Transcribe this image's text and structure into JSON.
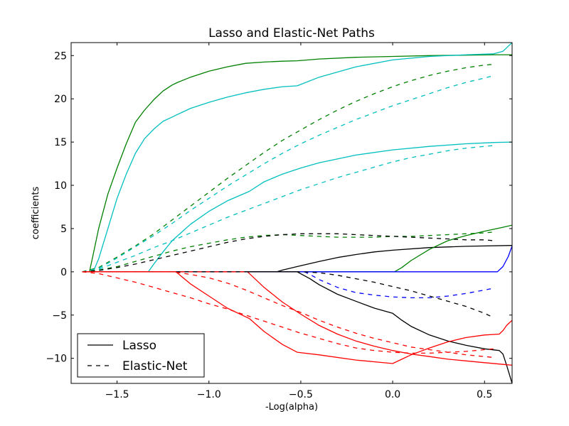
{
  "chart_data": {
    "type": "line",
    "title": "Lasso and Elastic-Net Paths",
    "xlabel": "-Log(alpha)",
    "ylabel": "coefficients",
    "xlim": [
      -1.75,
      0.65
    ],
    "ylim": [
      -12.9,
      26.5
    ],
    "xticks": [
      -1.5,
      -1.0,
      -0.5,
      0.0,
      0.5
    ],
    "xtick_labels": [
      "−1.5",
      "−1.0",
      "−0.5",
      "0.0",
      "0.5"
    ],
    "yticks": [
      -10,
      -5,
      0,
      5,
      10,
      15,
      20,
      25
    ],
    "ytick_labels": [
      "−10",
      "−5",
      "0",
      "5",
      "10",
      "15",
      "20",
      "25"
    ],
    "grid": false,
    "legend": {
      "position": "lower-left",
      "entries": [
        {
          "label": "Lasso",
          "style": "solid"
        },
        {
          "label": "Elastic-Net",
          "style": "dashed"
        }
      ]
    },
    "series": [
      {
        "group": "Lasso",
        "color": "#008000",
        "style": "solid",
        "x": [
          -1.69,
          -1.65,
          -1.63,
          -1.6,
          -1.55,
          -1.5,
          -1.45,
          -1.4,
          -1.35,
          -1.3,
          -1.25,
          -1.2,
          -1.17,
          -1.1,
          -1.0,
          -0.9,
          -0.8,
          -0.7,
          -0.6,
          -0.52,
          -0.4,
          -0.2,
          0.0,
          0.2,
          0.4,
          0.55,
          0.65
        ],
        "y": [
          0,
          0,
          2,
          5,
          9,
          12,
          14.8,
          17.3,
          18.7,
          19.9,
          20.9,
          21.6,
          21.9,
          22.5,
          23.2,
          23.7,
          24.1,
          24.25,
          24.35,
          24.4,
          24.6,
          24.8,
          24.9,
          25.0,
          25.05,
          25.1,
          25.1
        ]
      },
      {
        "group": "Lasso",
        "color": "#00BFBF",
        "style": "solid",
        "x": [
          -1.69,
          -1.63,
          -1.6,
          -1.55,
          -1.5,
          -1.45,
          -1.4,
          -1.35,
          -1.3,
          -1.25,
          -1.2,
          -1.17,
          -1.1,
          -1.0,
          -0.9,
          -0.8,
          -0.7,
          -0.6,
          -0.52,
          -0.4,
          -0.2,
          0.0,
          0.2,
          0.4,
          0.55,
          0.6,
          0.65
        ],
        "y": [
          0,
          0,
          1.5,
          5,
          8.5,
          11.3,
          13.7,
          15.4,
          16.5,
          17.4,
          17.9,
          18.2,
          18.9,
          19.6,
          20.2,
          20.7,
          21.1,
          21.4,
          21.5,
          22.5,
          23.7,
          24.5,
          24.9,
          25.1,
          25.2,
          25.5,
          26.5
        ]
      },
      {
        "group": "Lasso",
        "color": "#00BFBF",
        "style": "solid",
        "x": [
          -1.69,
          -1.33,
          -1.3,
          -1.25,
          -1.2,
          -1.1,
          -1.0,
          -0.9,
          -0.78,
          -0.7,
          -0.6,
          -0.5,
          -0.4,
          -0.2,
          0.0,
          0.2,
          0.4,
          0.55,
          0.65
        ],
        "y": [
          0,
          0,
          0.9,
          2.3,
          3.6,
          5.5,
          7.0,
          8.2,
          9.3,
          10.4,
          11.3,
          12.0,
          12.6,
          13.5,
          14.1,
          14.5,
          14.8,
          14.95,
          15.0
        ]
      },
      {
        "group": "Lasso",
        "color": "#000000",
        "style": "solid",
        "x": [
          -1.69,
          -0.63,
          -0.6,
          -0.5,
          -0.4,
          -0.3,
          -0.2,
          -0.1,
          0.0,
          0.2,
          0.4,
          0.65
        ],
        "y": [
          0,
          0,
          0.2,
          0.7,
          1.2,
          1.65,
          2.0,
          2.3,
          2.5,
          2.8,
          2.95,
          3.05
        ]
      },
      {
        "group": "Lasso",
        "color": "#008000",
        "style": "solid",
        "x": [
          -1.69,
          0.01,
          0.05,
          0.1,
          0.2,
          0.3,
          0.4,
          0.5,
          0.6,
          0.65
        ],
        "y": [
          0,
          0,
          0.5,
          1.3,
          2.6,
          3.6,
          4.2,
          4.7,
          5.15,
          5.4
        ]
      },
      {
        "group": "Lasso",
        "color": "#0000FF",
        "style": "solid",
        "x": [
          -1.69,
          0.57,
          0.6,
          0.63,
          0.65
        ],
        "y": [
          0,
          0,
          0.6,
          1.8,
          3.0
        ]
      },
      {
        "group": "Lasso",
        "color": "#000000",
        "style": "solid",
        "x": [
          -1.69,
          -0.52,
          -0.45,
          -0.4,
          -0.3,
          -0.2,
          -0.1,
          0.0,
          0.05,
          0.1,
          0.2,
          0.3,
          0.4,
          0.5,
          0.58,
          0.6,
          0.62,
          0.65
        ],
        "y": [
          0,
          0,
          -0.8,
          -1.5,
          -2.6,
          -3.4,
          -4.2,
          -4.8,
          -5.6,
          -6.3,
          -7.3,
          -8.0,
          -8.5,
          -8.9,
          -9.1,
          -9.5,
          -10.8,
          -12.9
        ]
      },
      {
        "group": "Lasso",
        "color": "#FF0000",
        "style": "solid",
        "x": [
          -1.69,
          -1.18,
          -1.1,
          -1.0,
          -0.9,
          -0.8,
          -0.78,
          -0.7,
          -0.6,
          -0.52,
          -0.4,
          -0.2,
          0.0,
          0.05,
          0.1,
          0.2,
          0.3,
          0.4,
          0.5,
          0.58,
          0.6,
          0.62,
          0.65
        ],
        "y": [
          0,
          0,
          -1.4,
          -2.8,
          -4.2,
          -5.2,
          -5.4,
          -6.9,
          -8.4,
          -9.3,
          -9.6,
          -10.2,
          -10.6,
          -10.1,
          -9.6,
          -8.8,
          -8.1,
          -7.6,
          -7.3,
          -7.2,
          -6.8,
          -6.2,
          -5.6
        ]
      },
      {
        "group": "Lasso",
        "color": "#FF0000",
        "style": "solid",
        "x": [
          -1.69,
          -0.79,
          -0.7,
          -0.6,
          -0.5,
          -0.4,
          -0.3,
          -0.2,
          -0.1,
          0.0,
          0.1,
          0.2,
          0.3,
          0.4,
          0.5,
          0.6,
          0.65
        ],
        "y": [
          0,
          0,
          -1.8,
          -3.5,
          -4.9,
          -6.2,
          -7.2,
          -8.0,
          -8.6,
          -9.1,
          -9.5,
          -9.8,
          -10.1,
          -10.3,
          -10.5,
          -10.7,
          -10.8
        ]
      },
      {
        "group": "Elastic-Net",
        "color": "#008000",
        "style": "dashed",
        "x": [
          -1.69,
          -1.6,
          -1.5,
          -1.4,
          -1.3,
          -1.2,
          -1.1,
          -1.0,
          -0.9,
          -0.8,
          -0.7,
          -0.6,
          -0.5,
          -0.4,
          -0.3,
          -0.2,
          -0.1,
          0.0,
          0.1,
          0.2,
          0.3,
          0.4,
          0.5,
          0.55
        ],
        "y": [
          0,
          0.5,
          1.7,
          3.0,
          4.4,
          6.0,
          7.6,
          9.2,
          10.8,
          12.3,
          13.8,
          15.2,
          16.4,
          17.6,
          18.7,
          19.7,
          20.6,
          21.4,
          22.1,
          22.7,
          23.2,
          23.6,
          23.9,
          24.0
        ]
      },
      {
        "group": "Elastic-Net",
        "color": "#00BFBF",
        "style": "dashed",
        "x": [
          -1.69,
          -1.6,
          -1.5,
          -1.4,
          -1.3,
          -1.2,
          -1.1,
          -1.0,
          -0.9,
          -0.8,
          -0.7,
          -0.6,
          -0.5,
          -0.4,
          -0.3,
          -0.2,
          -0.1,
          0.0,
          0.1,
          0.2,
          0.3,
          0.4,
          0.5,
          0.55
        ],
        "y": [
          0,
          0.4,
          1.6,
          2.9,
          4.2,
          5.6,
          7.1,
          8.5,
          9.9,
          11.2,
          12.5,
          13.7,
          14.8,
          15.8,
          16.7,
          17.6,
          18.4,
          19.2,
          19.9,
          20.6,
          21.3,
          21.9,
          22.4,
          22.7
        ]
      },
      {
        "group": "Elastic-Net",
        "color": "#00BFBF",
        "style": "dashed",
        "x": [
          -1.69,
          -1.6,
          -1.5,
          -1.4,
          -1.3,
          -1.2,
          -1.1,
          -1.0,
          -0.9,
          -0.8,
          -0.7,
          -0.6,
          -0.5,
          -0.4,
          -0.3,
          -0.2,
          -0.1,
          0.0,
          0.1,
          0.2,
          0.3,
          0.4,
          0.5,
          0.55
        ],
        "y": [
          0,
          0.3,
          1.1,
          1.9,
          2.8,
          3.6,
          4.5,
          5.4,
          6.3,
          7.1,
          7.9,
          8.7,
          9.5,
          10.2,
          10.9,
          11.5,
          12.1,
          12.7,
          13.2,
          13.6,
          14.0,
          14.3,
          14.5,
          14.6
        ]
      },
      {
        "group": "Elastic-Net",
        "color": "#008000",
        "style": "dashed",
        "x": [
          -1.69,
          -1.6,
          -1.5,
          -1.4,
          -1.3,
          -1.2,
          -1.1,
          -1.0,
          -0.9,
          -0.8,
          -0.7,
          -0.6,
          -0.5,
          -0.4,
          -0.3,
          -0.2,
          -0.1,
          0.0,
          0.1,
          0.2,
          0.3,
          0.4,
          0.5,
          0.55
        ],
        "y": [
          0,
          0.2,
          0.6,
          1.2,
          1.8,
          2.4,
          2.9,
          3.3,
          3.7,
          4.0,
          4.2,
          4.3,
          4.2,
          4.1,
          4.0,
          4.0,
          4.0,
          4.1,
          4.1,
          4.2,
          4.3,
          4.4,
          4.5,
          4.6
        ]
      },
      {
        "group": "Elastic-Net",
        "color": "#000000",
        "style": "dashed",
        "x": [
          -1.69,
          -1.6,
          -1.5,
          -1.4,
          -1.3,
          -1.2,
          -1.1,
          -1.0,
          -0.9,
          -0.8,
          -0.7,
          -0.6,
          -0.5,
          -0.4,
          -0.3,
          -0.2,
          -0.1,
          0.0,
          0.1,
          0.2,
          0.3,
          0.4,
          0.5,
          0.55
        ],
        "y": [
          0,
          0.15,
          0.5,
          0.9,
          1.4,
          1.9,
          2.4,
          2.9,
          3.4,
          3.8,
          4.1,
          4.3,
          4.4,
          4.4,
          4.4,
          4.3,
          4.2,
          4.1,
          4.0,
          3.9,
          3.8,
          3.7,
          3.7,
          3.6
        ]
      },
      {
        "group": "Elastic-Net",
        "color": "#0000FF",
        "style": "dashed",
        "x": [
          -1.69,
          -0.48,
          -0.45,
          -0.4,
          -0.3,
          -0.2,
          -0.1,
          0.0,
          0.1,
          0.2,
          0.3,
          0.4,
          0.5,
          0.55
        ],
        "y": [
          0,
          0,
          -0.3,
          -0.9,
          -1.8,
          -2.4,
          -2.7,
          -2.9,
          -3.0,
          -3.0,
          -2.8,
          -2.5,
          -2.1,
          -1.9
        ]
      },
      {
        "group": "Elastic-Net",
        "color": "#000000",
        "style": "dashed",
        "x": [
          -1.69,
          -0.6,
          -0.5,
          -0.4,
          -0.3,
          -0.2,
          -0.1,
          0.0,
          0.1,
          0.2,
          0.3,
          0.4,
          0.5,
          0.55
        ],
        "y": [
          0,
          0,
          0,
          -0.1,
          -0.4,
          -0.8,
          -1.2,
          -1.7,
          -2.2,
          -2.8,
          -3.4,
          -4.0,
          -4.8,
          -5.3
        ]
      },
      {
        "group": "Elastic-Net",
        "color": "#FF0000",
        "style": "dashed",
        "x": [
          -1.69,
          -1.6,
          -1.5,
          -1.4,
          -1.3,
          -1.2,
          -1.1,
          -1.0,
          -0.9,
          -0.8,
          -0.7,
          -0.6,
          -0.5,
          -0.4,
          -0.3,
          -0.2,
          -0.1,
          0.0,
          0.1,
          0.2,
          0.3,
          0.4,
          0.5,
          0.55
        ],
        "y": [
          0,
          -0.2,
          -0.7,
          -1.2,
          -1.8,
          -2.4,
          -3.0,
          -3.7,
          -4.3,
          -5.0,
          -5.7,
          -6.4,
          -7.1,
          -7.7,
          -8.3,
          -8.8,
          -9.1,
          -9.3,
          -9.4,
          -9.4,
          -9.3,
          -9.2,
          -9.0,
          -8.9
        ]
      },
      {
        "group": "Elastic-Net",
        "color": "#FF0000",
        "style": "dashed",
        "x": [
          -1.69,
          -1.2,
          -1.1,
          -1.0,
          -0.9,
          -0.8,
          -0.7,
          -0.6,
          -0.5,
          -0.4,
          -0.3,
          -0.2,
          -0.1,
          0.0,
          0.1,
          0.2,
          0.3,
          0.4,
          0.5,
          0.55
        ],
        "y": [
          0,
          0,
          -0.3,
          -0.7,
          -1.3,
          -2.1,
          -3.0,
          -3.9,
          -4.7,
          -5.6,
          -6.4,
          -7.1,
          -7.7,
          -8.2,
          -8.7,
          -9.0,
          -9.3,
          -9.6,
          -9.8,
          -9.9
        ]
      }
    ]
  }
}
